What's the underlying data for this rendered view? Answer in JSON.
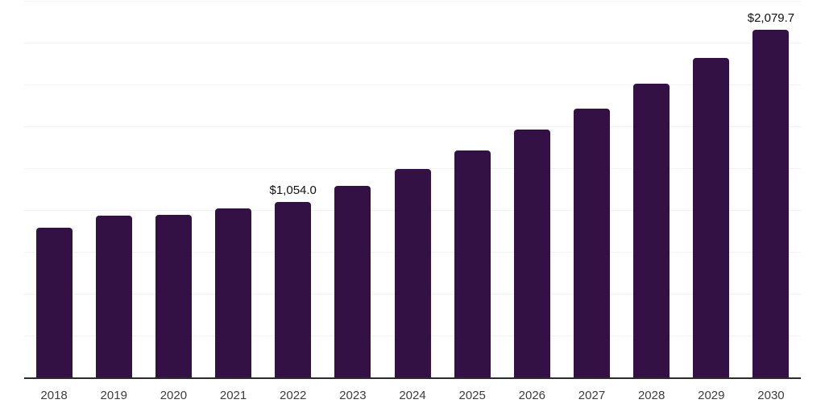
{
  "chart_data": {
    "type": "bar",
    "title": "",
    "xlabel": "",
    "ylabel": "",
    "categories": [
      "2018",
      "2019",
      "2020",
      "2021",
      "2022",
      "2023",
      "2024",
      "2025",
      "2026",
      "2027",
      "2028",
      "2029",
      "2030"
    ],
    "values": [
      900,
      970,
      975,
      1015,
      1054.0,
      1147,
      1250,
      1360,
      1485,
      1611,
      1760,
      1912,
      2079.7
    ],
    "value_labels": {
      "2022": "$1,054.0",
      "2030": "$2,079.7"
    },
    "ylim": [
      0,
      2250
    ],
    "gridline_interval": 250,
    "grid": "horizontal",
    "legend": "none",
    "colors": {
      "bar": "#331145",
      "axis_line": "#2b2b2b",
      "gridline": "#f2f2f2",
      "tick_label": "#3d3d3d",
      "value_label": "#111111",
      "background": "#ffffff"
    }
  }
}
